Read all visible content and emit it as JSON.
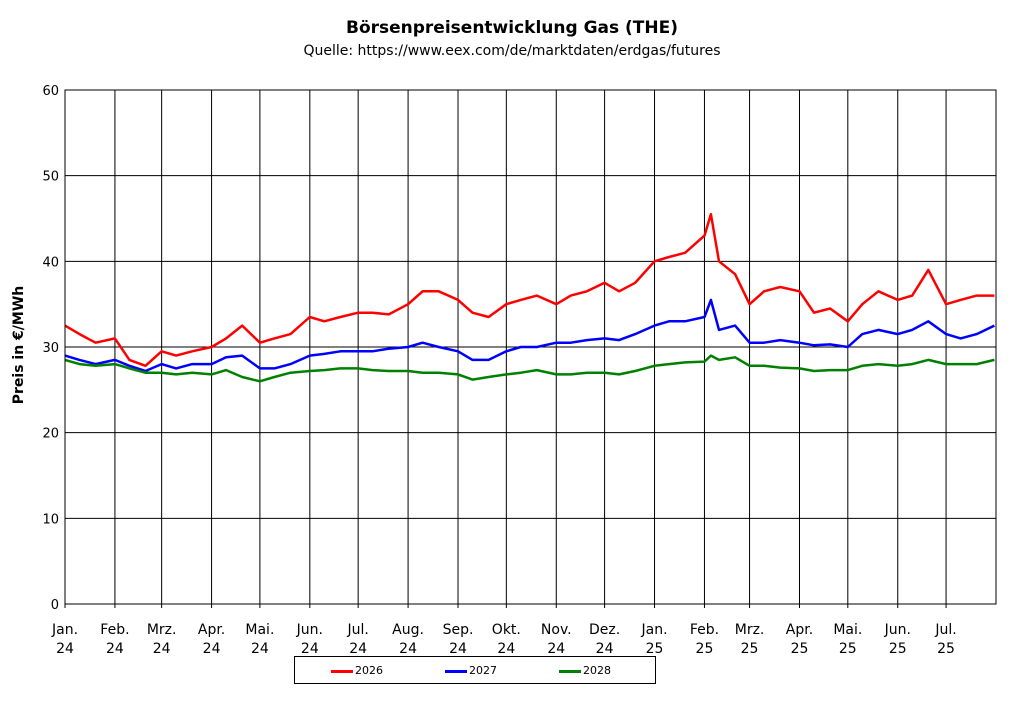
{
  "chart_data": {
    "type": "line",
    "title": "Börsenpreisentwicklung Gas (THE)",
    "subtitle": "Quelle: https://www.eex.com/de/marktdaten/erdgas/futures",
    "ylabel": "Preis in €/MWh",
    "xlabel": "",
    "ylim": [
      0,
      60
    ],
    "yticks": [
      0,
      10,
      20,
      30,
      40,
      50,
      60
    ],
    "xlim": [
      "2024-01",
      "2025-08"
    ],
    "grid": true,
    "legend_position": "bottom",
    "x_tick_labels": [
      {
        "month": "Jan.",
        "year": "24"
      },
      {
        "month": "Feb.",
        "year": "24"
      },
      {
        "month": "Mrz.",
        "year": "24"
      },
      {
        "month": "Apr.",
        "year": "24"
      },
      {
        "month": "Mai.",
        "year": "24"
      },
      {
        "month": "Jun.",
        "year": "24"
      },
      {
        "month": "Jul.",
        "year": "24"
      },
      {
        "month": "Aug.",
        "year": "24"
      },
      {
        "month": "Sep.",
        "year": "24"
      },
      {
        "month": "Okt.",
        "year": "24"
      },
      {
        "month": "Nov.",
        "year": "24"
      },
      {
        "month": "Dez.",
        "year": "24"
      },
      {
        "month": "Jan.",
        "year": "25"
      },
      {
        "month": "Feb.",
        "year": "25"
      },
      {
        "month": "Mrz.",
        "year": "25"
      },
      {
        "month": "Apr.",
        "year": "25"
      },
      {
        "month": "Mai.",
        "year": "25"
      },
      {
        "month": "Jun.",
        "year": "25"
      },
      {
        "month": "Jul.",
        "year": "25"
      }
    ],
    "x": [
      "2024-01-01",
      "2024-01-10",
      "2024-01-20",
      "2024-02-01",
      "2024-02-10",
      "2024-02-20",
      "2024-03-01",
      "2024-03-10",
      "2024-03-20",
      "2024-04-01",
      "2024-04-10",
      "2024-04-20",
      "2024-05-01",
      "2024-05-10",
      "2024-05-20",
      "2024-06-01",
      "2024-06-10",
      "2024-06-20",
      "2024-07-01",
      "2024-07-10",
      "2024-07-20",
      "2024-08-01",
      "2024-08-10",
      "2024-08-20",
      "2024-09-01",
      "2024-09-10",
      "2024-09-20",
      "2024-10-01",
      "2024-10-10",
      "2024-10-20",
      "2024-11-01",
      "2024-11-10",
      "2024-11-20",
      "2024-12-01",
      "2024-12-10",
      "2024-12-20",
      "2025-01-01",
      "2025-01-10",
      "2025-01-20",
      "2025-02-01",
      "2025-02-05",
      "2025-02-10",
      "2025-02-20",
      "2025-03-01",
      "2025-03-10",
      "2025-03-20",
      "2025-04-01",
      "2025-04-10",
      "2025-04-20",
      "2025-05-01",
      "2025-05-10",
      "2025-05-20",
      "2025-06-01",
      "2025-06-10",
      "2025-06-20",
      "2025-07-01",
      "2025-07-10",
      "2025-07-20",
      "2025-07-31"
    ],
    "series": [
      {
        "name": "2026",
        "color": "#ff0000",
        "values": [
          32.5,
          31.5,
          30.5,
          31.0,
          28.5,
          27.8,
          29.5,
          29.0,
          29.5,
          30.0,
          31.0,
          32.5,
          30.5,
          31.0,
          31.5,
          33.5,
          33.0,
          33.5,
          34.0,
          34.0,
          33.8,
          35.0,
          36.5,
          36.5,
          35.5,
          34.0,
          33.5,
          35.0,
          35.5,
          36.0,
          35.0,
          36.0,
          36.5,
          37.5,
          36.5,
          37.5,
          40.0,
          40.5,
          41.0,
          43.0,
          45.5,
          40.0,
          38.5,
          35.0,
          36.5,
          37.0,
          36.5,
          34.0,
          34.5,
          33.0,
          35.0,
          36.5,
          35.5,
          36.0,
          39.0,
          35.0,
          35.5,
          36.0,
          36.0
        ]
      },
      {
        "name": "2027",
        "color": "#0000ff",
        "values": [
          29.0,
          28.5,
          28.0,
          28.5,
          27.8,
          27.2,
          28.0,
          27.5,
          28.0,
          28.0,
          28.8,
          29.0,
          27.5,
          27.5,
          28.0,
          29.0,
          29.2,
          29.5,
          29.5,
          29.5,
          29.8,
          30.0,
          30.5,
          30.0,
          29.5,
          28.5,
          28.5,
          29.5,
          30.0,
          30.0,
          30.5,
          30.5,
          30.8,
          31.0,
          30.8,
          31.5,
          32.5,
          33.0,
          33.0,
          33.5,
          35.5,
          32.0,
          32.5,
          30.5,
          30.5,
          30.8,
          30.5,
          30.2,
          30.3,
          30.0,
          31.5,
          32.0,
          31.5,
          32.0,
          33.0,
          31.5,
          31.0,
          31.5,
          32.5
        ]
      },
      {
        "name": "2028",
        "color": "#008000",
        "values": [
          28.5,
          28.0,
          27.8,
          28.0,
          27.5,
          27.0,
          27.0,
          26.8,
          27.0,
          26.8,
          27.3,
          26.5,
          26.0,
          26.5,
          27.0,
          27.2,
          27.3,
          27.5,
          27.5,
          27.3,
          27.2,
          27.2,
          27.0,
          27.0,
          26.8,
          26.2,
          26.5,
          26.8,
          27.0,
          27.3,
          26.8,
          26.8,
          27.0,
          27.0,
          26.8,
          27.2,
          27.8,
          28.0,
          28.2,
          28.3,
          29.0,
          28.5,
          28.8,
          27.8,
          27.8,
          27.6,
          27.5,
          27.2,
          27.3,
          27.3,
          27.8,
          28.0,
          27.8,
          28.0,
          28.5,
          28.0,
          28.0,
          28.0,
          28.5
        ]
      }
    ]
  }
}
